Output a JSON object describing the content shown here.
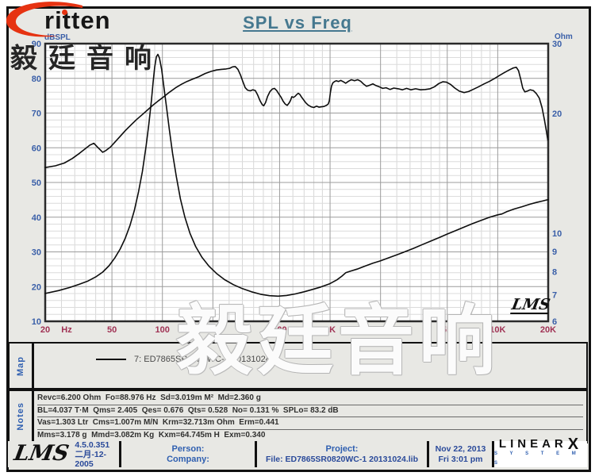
{
  "header": {
    "title": "SPL vs Freq",
    "brand": "ritten",
    "watermark": "毅廷音响"
  },
  "palette": {
    "frame_bg": "#e8e8e4",
    "title_color": "#45788f",
    "axis_label_blue": "#3a5fa8",
    "x_tick_maroon": "#a03254",
    "brand_red": "#e63312",
    "curve_color": "#0d0d0d"
  },
  "chart_data": {
    "type": "line",
    "title": "SPL vs Freq",
    "grid": true,
    "x_axis": {
      "scale": "log",
      "min": 20,
      "max": 20000,
      "unit": "Hz",
      "ticks": [
        {
          "v": 20,
          "label": "20"
        },
        {
          "v": 50,
          "label": "50"
        },
        {
          "v": 100,
          "label": "100"
        },
        {
          "v": 200,
          "label": "200"
        },
        {
          "v": 500,
          "label": "500"
        },
        {
          "v": 1000,
          "label": "1K"
        },
        {
          "v": 2000,
          "label": "2K"
        },
        {
          "v": 5000,
          "label": "5K"
        },
        {
          "v": 10000,
          "label": "10K"
        },
        {
          "v": 20000,
          "label": "20K"
        }
      ]
    },
    "y_left": {
      "label": "dBSPL",
      "min": 10,
      "max": 90,
      "ticks": [
        90,
        80,
        70,
        60,
        50,
        40,
        30,
        20,
        10
      ],
      "minor_step": 2
    },
    "y_right": {
      "label": "Ohm",
      "scale": "log",
      "min": 6,
      "max": 30,
      "ticks": [
        30,
        20,
        10,
        9,
        8,
        7,
        6
      ]
    },
    "in_chart_logo": "LMS",
    "series": [
      {
        "name": "SPL",
        "axis": "left",
        "points": [
          [
            20,
            54.3
          ],
          [
            23,
            54.8
          ],
          [
            26,
            55.6
          ],
          [
            29,
            56.9
          ],
          [
            32,
            58.4
          ],
          [
            35,
            59.9
          ],
          [
            37,
            60.8
          ],
          [
            39,
            61.3
          ],
          [
            41,
            60.2
          ],
          [
            44,
            58.7
          ],
          [
            46,
            59.2
          ],
          [
            49,
            60.2
          ],
          [
            52,
            61.6
          ],
          [
            56,
            63.3
          ],
          [
            60,
            64.9
          ],
          [
            65,
            66.6
          ],
          [
            70,
            68.1
          ],
          [
            76,
            69.6
          ],
          [
            82,
            71.0
          ],
          [
            88,
            72.3
          ],
          [
            95,
            73.6
          ],
          [
            102,
            74.7
          ],
          [
            110,
            76.0
          ],
          [
            120,
            77.3
          ],
          [
            130,
            78.3
          ],
          [
            140,
            79.1
          ],
          [
            152,
            79.8
          ],
          [
            165,
            80.5
          ],
          [
            180,
            81.4
          ],
          [
            195,
            82.0
          ],
          [
            210,
            82.4
          ],
          [
            225,
            82.6
          ],
          [
            240,
            82.7
          ],
          [
            252,
            82.9
          ],
          [
            262,
            83.3
          ],
          [
            272,
            83.4
          ],
          [
            282,
            82.6
          ],
          [
            292,
            81.0
          ],
          [
            302,
            79.0
          ],
          [
            312,
            77.3
          ],
          [
            322,
            76.6
          ],
          [
            334,
            76.4
          ],
          [
            346,
            76.7
          ],
          [
            358,
            76.5
          ],
          [
            370,
            75.2
          ],
          [
            382,
            73.6
          ],
          [
            394,
            72.4
          ],
          [
            402,
            72.1
          ],
          [
            412,
            73.0
          ],
          [
            424,
            74.8
          ],
          [
            438,
            76.2
          ],
          [
            452,
            76.9
          ],
          [
            466,
            77.1
          ],
          [
            480,
            76.5
          ],
          [
            495,
            75.5
          ],
          [
            510,
            74.6
          ],
          [
            525,
            73.4
          ],
          [
            540,
            72.6
          ],
          [
            555,
            72.2
          ],
          [
            568,
            72.8
          ],
          [
            580,
            73.6
          ],
          [
            592,
            74.7
          ],
          [
            604,
            74.5
          ],
          [
            618,
            74.8
          ],
          [
            632,
            75.3
          ],
          [
            646,
            75.7
          ],
          [
            660,
            75.4
          ],
          [
            676,
            74.6
          ],
          [
            695,
            73.8
          ],
          [
            715,
            73.0
          ],
          [
            740,
            72.3
          ],
          [
            770,
            71.8
          ],
          [
            800,
            71.6
          ],
          [
            830,
            72.0
          ],
          [
            860,
            71.7
          ],
          [
            890,
            71.8
          ],
          [
            920,
            71.9
          ],
          [
            950,
            72.2
          ],
          [
            975,
            72.6
          ],
          [
            990,
            73.5
          ],
          [
            1005,
            76.0
          ],
          [
            1020,
            77.8
          ],
          [
            1040,
            78.7
          ],
          [
            1065,
            79.1
          ],
          [
            1090,
            79.3
          ],
          [
            1120,
            79.1
          ],
          [
            1160,
            79.4
          ],
          [
            1200,
            79.0
          ],
          [
            1240,
            78.6
          ],
          [
            1290,
            79.2
          ],
          [
            1340,
            79.6
          ],
          [
            1400,
            79.3
          ],
          [
            1460,
            79.6
          ],
          [
            1520,
            79.2
          ],
          [
            1580,
            78.4
          ],
          [
            1650,
            77.7
          ],
          [
            1720,
            78.0
          ],
          [
            1800,
            78.4
          ],
          [
            1880,
            77.9
          ],
          [
            1960,
            77.6
          ],
          [
            2060,
            77.1
          ],
          [
            2160,
            77.3
          ],
          [
            2280,
            76.8
          ],
          [
            2400,
            77.2
          ],
          [
            2550,
            77.0
          ],
          [
            2700,
            76.7
          ],
          [
            2860,
            77.1
          ],
          [
            3040,
            76.7
          ],
          [
            3240,
            77.0
          ],
          [
            3460,
            76.7
          ],
          [
            3700,
            76.8
          ],
          [
            3950,
            77.0
          ],
          [
            4200,
            77.6
          ],
          [
            4450,
            78.5
          ],
          [
            4700,
            79.0
          ],
          [
            4950,
            78.9
          ],
          [
            5250,
            78.2
          ],
          [
            5550,
            77.2
          ],
          [
            5900,
            76.3
          ],
          [
            6300,
            75.9
          ],
          [
            6700,
            76.2
          ],
          [
            7200,
            76.9
          ],
          [
            7700,
            77.6
          ],
          [
            8300,
            78.4
          ],
          [
            8900,
            79.1
          ],
          [
            9600,
            80.0
          ],
          [
            10300,
            80.9
          ],
          [
            11000,
            81.7
          ],
          [
            11700,
            82.4
          ],
          [
            12400,
            83.0
          ],
          [
            12900,
            83.2
          ],
          [
            13300,
            82.2
          ],
          [
            13700,
            79.8
          ],
          [
            14100,
            77.2
          ],
          [
            14500,
            76.1
          ],
          [
            15000,
            76.3
          ],
          [
            15600,
            76.7
          ],
          [
            16300,
            76.5
          ],
          [
            17000,
            75.6
          ],
          [
            17700,
            74.3
          ],
          [
            18400,
            71.5
          ],
          [
            19000,
            68.0
          ],
          [
            19500,
            64.8
          ],
          [
            19900,
            62.2
          ]
        ]
      },
      {
        "name": "Impedance",
        "axis": "right",
        "points": [
          [
            20,
            7.05
          ],
          [
            24,
            7.17
          ],
          [
            28,
            7.3
          ],
          [
            32,
            7.44
          ],
          [
            36,
            7.58
          ],
          [
            40,
            7.76
          ],
          [
            44,
            7.98
          ],
          [
            48,
            8.28
          ],
          [
            52,
            8.66
          ],
          [
            56,
            9.12
          ],
          [
            60,
            9.7
          ],
          [
            64,
            10.45
          ],
          [
            68,
            11.4
          ],
          [
            72,
            12.7
          ],
          [
            76,
            14.3
          ],
          [
            80,
            16.6
          ],
          [
            83,
            18.8
          ],
          [
            86,
            21.6
          ],
          [
            88,
            24.0
          ],
          [
            90,
            26.2
          ],
          [
            92,
            27.8
          ],
          [
            94,
            28.2
          ],
          [
            96,
            27.6
          ],
          [
            99,
            25.8
          ],
          [
            102,
            23.4
          ],
          [
            106,
            20.6
          ],
          [
            110,
            18.2
          ],
          [
            115,
            15.9
          ],
          [
            121,
            13.9
          ],
          [
            128,
            12.2
          ],
          [
            136,
            11.0
          ],
          [
            146,
            10.0
          ],
          [
            158,
            9.25
          ],
          [
            172,
            8.7
          ],
          [
            190,
            8.25
          ],
          [
            210,
            7.92
          ],
          [
            235,
            7.64
          ],
          [
            265,
            7.42
          ],
          [
            300,
            7.25
          ],
          [
            340,
            7.12
          ],
          [
            385,
            7.02
          ],
          [
            435,
            6.96
          ],
          [
            490,
            6.94
          ],
          [
            550,
            6.97
          ],
          [
            620,
            7.03
          ],
          [
            700,
            7.12
          ],
          [
            790,
            7.22
          ],
          [
            880,
            7.32
          ],
          [
            990,
            7.45
          ],
          [
            1100,
            7.63
          ],
          [
            1180,
            7.8
          ],
          [
            1240,
            7.95
          ],
          [
            1320,
            8.02
          ],
          [
            1450,
            8.12
          ],
          [
            1600,
            8.25
          ],
          [
            1800,
            8.4
          ],
          [
            2000,
            8.52
          ],
          [
            2250,
            8.68
          ],
          [
            2500,
            8.82
          ],
          [
            2800,
            8.98
          ],
          [
            3150,
            9.16
          ],
          [
            3550,
            9.36
          ],
          [
            4000,
            9.56
          ],
          [
            4500,
            9.76
          ],
          [
            5000,
            9.95
          ],
          [
            5600,
            10.15
          ],
          [
            6300,
            10.36
          ],
          [
            7100,
            10.58
          ],
          [
            8000,
            10.78
          ],
          [
            9000,
            10.98
          ],
          [
            10000,
            11.12
          ],
          [
            10600,
            11.18
          ],
          [
            11300,
            11.32
          ],
          [
            12500,
            11.5
          ],
          [
            14000,
            11.66
          ],
          [
            15500,
            11.82
          ],
          [
            17000,
            11.95
          ],
          [
            18500,
            12.05
          ],
          [
            19500,
            12.12
          ],
          [
            20000,
            12.15
          ]
        ]
      }
    ]
  },
  "map": {
    "label": "Map",
    "legend_text": "7: ED7865SR0820WC-1   20131024"
  },
  "notes": {
    "label": "Notes",
    "lines": [
      "Revc=6.200 Ohm  Fo=88.976 Hz  Sd=3.019m M²  Md=2.360 g",
      "BL=4.037 T·M  Qms= 2.405  Qes= 0.676  Qts= 0.528  No= 0.131 %  SPLo= 83.2 dB",
      "Vas=1.303 Ltr  Cms=1.007m M/N  Krm=32.713m Ohm  Erm=0.441",
      "Mms=3.178 g  Mmd=3.082m Kg  Kxm=64.745m H  Exm=0.340"
    ]
  },
  "footer": {
    "lms_logo": "LMS",
    "version": "4.5.0.351",
    "version_date": "二月-12-2005",
    "person_label": "Person:",
    "company_label": "Company:",
    "project_label": "Project:",
    "file_line": "File: ED7865SR0820WC-1  20131024.lib",
    "date": "Nov 22, 2013",
    "time": "Fri  3:01 pm",
    "linearx_letters": "LINEAR",
    "linearx_x": "X",
    "systems": "S Y S T E M S"
  }
}
